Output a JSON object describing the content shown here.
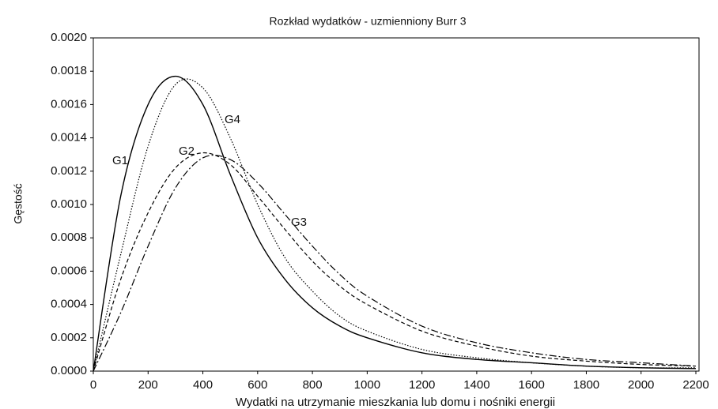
{
  "chart_data": {
    "type": "line",
    "title": "Rozkład wydatków - uzmienniony Burr 3",
    "xlabel": "Wydatki na utrzymanie mieszkania lub domu i nośniki energii",
    "ylabel": "Gęstość",
    "x": [
      0,
      100,
      200,
      300,
      400,
      500,
      600,
      700,
      800,
      900,
      1000,
      1200,
      1400,
      1600,
      1800,
      2000,
      2200
    ],
    "series": [
      {
        "name": "G1",
        "color": "#000000",
        "linestyle": "solid",
        "values": [
          0,
          0.00105,
          0.0016,
          0.00177,
          0.0016,
          0.00118,
          0.0008,
          0.00055,
          0.00038,
          0.00027,
          0.0002,
          0.00011,
          7e-05,
          5e-05,
          3e-05,
          2e-05,
          1.5e-05
        ]
      },
      {
        "name": "G2",
        "color": "#000000",
        "linestyle": "dashed",
        "values": [
          0,
          0.00055,
          0.00095,
          0.00122,
          0.00131,
          0.00124,
          0.00105,
          0.00085,
          0.00066,
          0.00051,
          0.0004,
          0.00024,
          0.00015,
          9e-05,
          6e-05,
          4e-05,
          3e-05
        ]
      },
      {
        "name": "G3",
        "color": "#000000",
        "linestyle": "dashdot",
        "values": [
          0,
          0.00035,
          0.00075,
          0.0011,
          0.00128,
          0.00127,
          0.00113,
          0.00094,
          0.00075,
          0.00058,
          0.00045,
          0.00027,
          0.00017,
          0.00011,
          7e-05,
          5e-05,
          3e-05
        ]
      },
      {
        "name": "G4",
        "color": "#000000",
        "linestyle": "dotted",
        "values": [
          0,
          0.0007,
          0.00135,
          0.00172,
          0.0017,
          0.0014,
          0.001,
          0.00068,
          0.00048,
          0.00033,
          0.00024,
          0.00013,
          8e-05,
          5e-05,
          3e-05,
          2e-05,
          2e-05
        ]
      }
    ],
    "xlim": [
      0,
      2200
    ],
    "xticks": [
      0,
      200,
      400,
      600,
      800,
      1000,
      1200,
      1400,
      1600,
      1800,
      2000,
      2200
    ],
    "ylim": [
      0,
      0.002
    ],
    "yticks": [
      {
        "value": 0,
        "label": "0.0000"
      },
      {
        "value": 0.0002,
        "label": "0.0002"
      },
      {
        "value": 0.0004,
        "label": "0.0004"
      },
      {
        "value": 0.0006,
        "label": "0.0006"
      },
      {
        "value": 0.0008,
        "label": "0.0008"
      },
      {
        "value": 0.001,
        "label": "0.0010"
      },
      {
        "value": 0.0012,
        "label": "0.0012"
      },
      {
        "value": 0.0014,
        "label": "0.0014"
      },
      {
        "value": 0.0016,
        "label": "0.0016"
      },
      {
        "value": 0.0018,
        "label": "0.0018"
      },
      {
        "value": 0.002,
        "label": "0.0020"
      }
    ]
  }
}
